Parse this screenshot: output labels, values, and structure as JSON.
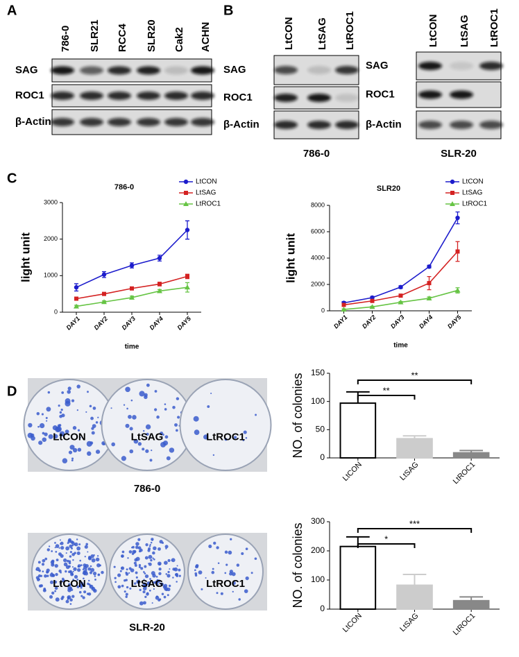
{
  "panel_labels": [
    "A",
    "B",
    "C",
    "D"
  ],
  "blot_a": {
    "lanes": [
      "786-0",
      "SLR21",
      "RCC4",
      "SLR20",
      "Cak2",
      "ACHN"
    ],
    "rows": [
      "SAG",
      "ROC1",
      "β-Actin"
    ]
  },
  "blot_b": [
    {
      "lanes": [
        "LtCON",
        "LtSAG",
        "LtROC1"
      ],
      "rows": [
        "SAG",
        "ROC1",
        "β-Actin"
      ],
      "caption": "786-0"
    },
    {
      "lanes": [
        "LtCON",
        "LtSAG",
        "LtROC1"
      ],
      "rows": [
        "SAG",
        "ROC1",
        "β-Actin"
      ],
      "caption": "SLR-20"
    }
  ],
  "photos": [
    {
      "labels": [
        "LtCON",
        "LtSAG",
        "LtROC1"
      ],
      "caption": "786-0"
    },
    {
      "labels": [
        "LtCON",
        "LtSAG",
        "LtROC1"
      ],
      "caption": "SLR-20"
    }
  ],
  "chart_data": [
    {
      "type": "line",
      "title": "786-0",
      "y_label": "light unit",
      "x_label": "time",
      "categories": [
        "DAY1",
        "DAY2",
        "DAY3",
        "DAY4",
        "DAY5"
      ],
      "ylim": [
        0,
        3000
      ],
      "yticks": [
        0,
        1000,
        2000,
        3000
      ],
      "series": [
        {
          "name": "LtCON",
          "color": "#1c1ccc",
          "marker": "circle",
          "values": [
            680,
            1030,
            1280,
            1480,
            2250
          ],
          "errors": [
            100,
            80,
            70,
            80,
            250
          ]
        },
        {
          "name": "LtSAG",
          "color": "#d42222",
          "marker": "square",
          "values": [
            370,
            500,
            650,
            770,
            980
          ],
          "errors": [
            40,
            40,
            40,
            50,
            60
          ]
        },
        {
          "name": "LtROC1",
          "color": "#66c444",
          "marker": "triangle",
          "values": [
            160,
            280,
            400,
            580,
            680
          ],
          "errors": [
            30,
            30,
            40,
            40,
            130
          ]
        }
      ]
    },
    {
      "type": "line",
      "title": "SLR20",
      "y_label": "light unit",
      "x_label": "time",
      "categories": [
        "DAY1",
        "DAY2",
        "DAY3",
        "DAY4",
        "DAY5"
      ],
      "ylim": [
        0,
        8000
      ],
      "yticks": [
        0,
        2000,
        4000,
        6000,
        8000
      ],
      "series": [
        {
          "name": "LtCON",
          "color": "#1c1ccc",
          "marker": "circle",
          "values": [
            600,
            1000,
            1800,
            3350,
            7050
          ],
          "errors": [
            100,
            100,
            100,
            100,
            450
          ]
        },
        {
          "name": "LtSAG",
          "color": "#d42222",
          "marker": "square",
          "values": [
            450,
            750,
            1150,
            2100,
            4500
          ],
          "errors": [
            80,
            80,
            100,
            500,
            750
          ]
        },
        {
          "name": "LtROC1",
          "color": "#66c444",
          "marker": "triangle",
          "values": [
            100,
            300,
            650,
            950,
            1550
          ],
          "errors": [
            50,
            50,
            60,
            100,
            200
          ]
        }
      ]
    },
    {
      "type": "bar",
      "y_label": "NO. of colonies",
      "categories": [
        "LtCON",
        "LtSAG",
        "LtROC1"
      ],
      "values": [
        97,
        34,
        9
      ],
      "errors": [
        20,
        5,
        4
      ],
      "colors": [
        "#ffffff",
        "#cccccc",
        "#888888"
      ],
      "ylim": [
        0,
        150
      ],
      "yticks": [
        0,
        50,
        100,
        150
      ],
      "annotations": [
        "**",
        "**"
      ]
    },
    {
      "type": "bar",
      "y_label": "NO. of colonies",
      "categories": [
        "LtCON",
        "LtSAG",
        "LtROC1"
      ],
      "values": [
        215,
        82,
        29
      ],
      "errors": [
        33,
        37,
        13
      ],
      "colors": [
        "#ffffff",
        "#cccccc",
        "#888888"
      ],
      "ylim": [
        0,
        300
      ],
      "yticks": [
        0,
        100,
        200,
        300
      ],
      "annotations": [
        "*",
        "***"
      ]
    }
  ]
}
